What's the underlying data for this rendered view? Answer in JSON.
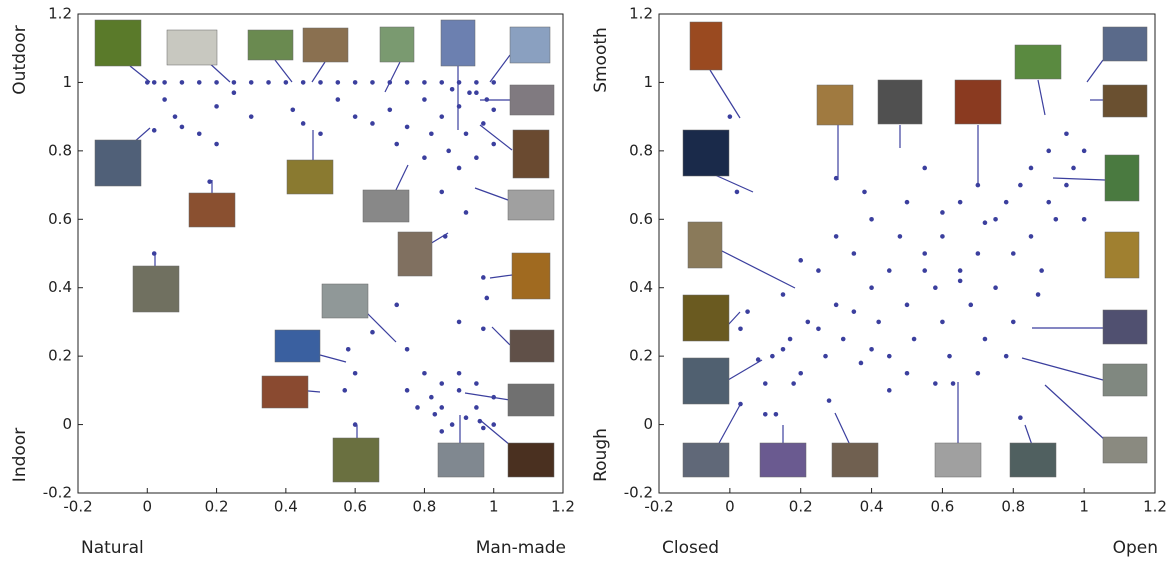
{
  "chart_data": [
    {
      "type": "scatter",
      "x_low_label": "Natural",
      "x_high_label": "Man-made",
      "y_high_label": "Outdoor",
      "y_low_label": "Indoor",
      "xlim": [
        -0.2,
        1.2
      ],
      "ylim": [
        -0.2,
        1.2
      ],
      "xticks": [
        -0.2,
        0,
        0.2,
        0.4,
        0.6,
        0.8,
        1,
        1.2
      ],
      "yticks": [
        -0.2,
        0,
        0.2,
        0.4,
        0.6,
        0.8,
        1,
        1.2
      ],
      "color": "#3b3f9e",
      "x": [
        0,
        0.02,
        0.05,
        0.1,
        0.15,
        0.2,
        0.25,
        0.3,
        0.35,
        0.4,
        0.45,
        0.5,
        0.55,
        0.6,
        0.65,
        0.7,
        0.75,
        0.8,
        0.85,
        0.9,
        0.95,
        1,
        0.05,
        0.08,
        0.1,
        0.15,
        0.2,
        0.2,
        0.25,
        0.3,
        0.42,
        0.45,
        0.5,
        0.55,
        0.6,
        0.65,
        0.7,
        0.72,
        0.75,
        0.8,
        0.82,
        0.85,
        0.87,
        0.9,
        0.92,
        0.95,
        0.97,
        1,
        1,
        0.9,
        0.95,
        0.8,
        0.02,
        0.18,
        0.02,
        0.85,
        0.92,
        0.86,
        0.97,
        0.98,
        0.72,
        0.9,
        0.97,
        0.65,
        0.58,
        0.75,
        0.6,
        0.8,
        0.85,
        0.9,
        0.95,
        1,
        0.85,
        0.88,
        0.92,
        0.97,
        0.82,
        0.9,
        0.95,
        1,
        0.75,
        0.78,
        0.85,
        0.6,
        0.57,
        0.93,
        0.88,
        0.98,
        0.83,
        0.96
      ],
      "y": [
        1,
        1,
        1,
        1,
        1,
        1,
        1,
        1,
        1,
        1,
        1,
        1,
        1,
        1,
        1,
        1,
        1,
        1,
        1,
        1,
        1,
        1,
        0.95,
        0.9,
        0.87,
        0.85,
        0.82,
        0.93,
        0.97,
        0.9,
        0.92,
        0.88,
        0.85,
        0.95,
        0.9,
        0.88,
        0.92,
        0.82,
        0.87,
        0.95,
        0.85,
        0.9,
        0.8,
        0.93,
        0.85,
        0.97,
        0.88,
        0.92,
        0.82,
        0.75,
        0.78,
        0.78,
        0.86,
        0.71,
        0.5,
        0.68,
        0.62,
        0.55,
        0.43,
        0.37,
        0.35,
        0.3,
        0.28,
        0.27,
        0.22,
        0.22,
        0.15,
        0.15,
        0.12,
        0.1,
        0.05,
        0,
        0.05,
        0,
        0.02,
        -0.01,
        0.08,
        0.15,
        0.12,
        0.08,
        0.1,
        0.05,
        -0.02,
        0,
        0.1,
        0.97,
        0.98,
        0.95,
        0.03,
        0.01
      ]
    },
    {
      "type": "scatter",
      "x_low_label": "Closed",
      "x_high_label": "Open",
      "y_high_label": "Smooth",
      "y_low_label": "Rough",
      "xlim": [
        -0.2,
        1.2
      ],
      "ylim": [
        -0.2,
        1.2
      ],
      "xticks": [
        -0.2,
        0,
        0.2,
        0.4,
        0.6,
        0.8,
        1,
        1.2
      ],
      "yticks": [
        -0.2,
        0,
        0.2,
        0.4,
        0.6,
        0.8,
        1,
        1.2
      ],
      "color": "#3b3f9e",
      "x": [
        0,
        0.02,
        0.05,
        0.1,
        0.12,
        0.15,
        0.17,
        0.2,
        0.22,
        0.25,
        0.27,
        0.3,
        0.3,
        0.32,
        0.35,
        0.37,
        0.4,
        0.4,
        0.42,
        0.45,
        0.45,
        0.48,
        0.5,
        0.5,
        0.52,
        0.55,
        0.55,
        0.58,
        0.6,
        0.6,
        0.62,
        0.65,
        0.65,
        0.68,
        0.7,
        0.7,
        0.72,
        0.75,
        0.75,
        0.78,
        0.8,
        0.8,
        0.82,
        0.85,
        0.85,
        0.88,
        0.9,
        0.9,
        0.92,
        0.95,
        0.95,
        0.97,
        1,
        1,
        0.18,
        0.25,
        0.35,
        0.45,
        0.55,
        0.65,
        0.3,
        0.4,
        0.5,
        0.6,
        0.7,
        0.2,
        0.38,
        0.58,
        0.78,
        0.15,
        0.1,
        0.13,
        0.28,
        0.63,
        0.82,
        0.03,
        0.08,
        0.03,
        0.72,
        0.87
      ],
      "y": [
        0.9,
        0.68,
        0.33,
        0.03,
        0.2,
        0.38,
        0.25,
        0.15,
        0.3,
        0.45,
        0.2,
        0.72,
        0.35,
        0.25,
        0.5,
        0.18,
        0.4,
        0.6,
        0.3,
        0.45,
        0.2,
        0.55,
        0.35,
        0.65,
        0.25,
        0.5,
        0.75,
        0.4,
        0.3,
        0.55,
        0.2,
        0.45,
        0.65,
        0.35,
        0.5,
        0.7,
        0.25,
        0.6,
        0.4,
        0.65,
        0.5,
        0.3,
        0.7,
        0.55,
        0.75,
        0.45,
        0.65,
        0.8,
        0.6,
        0.7,
        0.85,
        0.75,
        0.8,
        0.6,
        0.12,
        0.28,
        0.33,
        0.1,
        0.45,
        0.42,
        0.55,
        0.22,
        0.15,
        0.62,
        0.15,
        0.48,
        0.68,
        0.12,
        0.2,
        0.22,
        0.12,
        0.03,
        0.07,
        0.12,
        0.02,
        0.06,
        0.19,
        0.28,
        0.59,
        0.38
      ]
    }
  ]
}
